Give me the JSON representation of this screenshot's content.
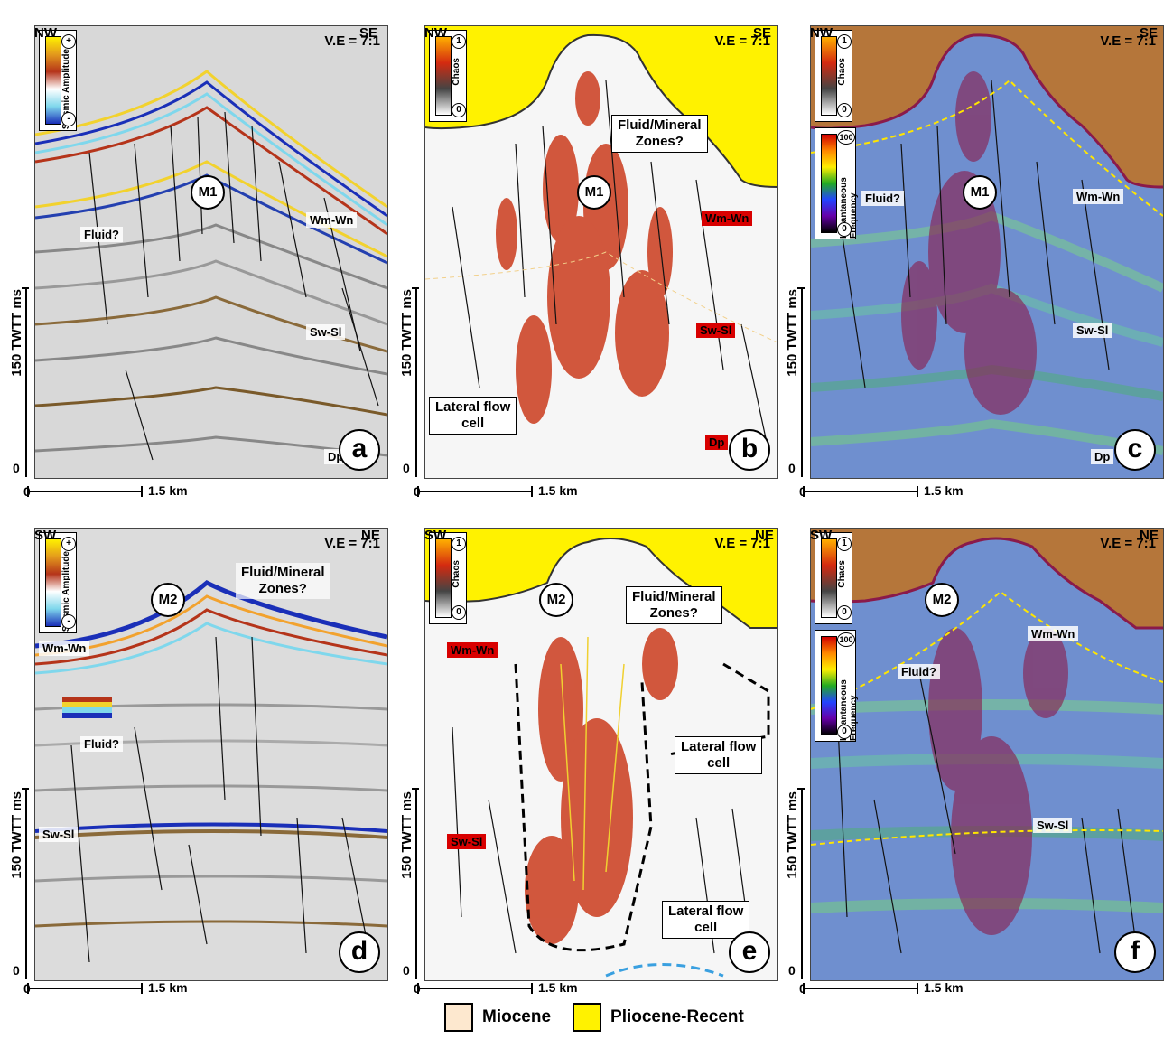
{
  "panels": [
    {
      "id": "a",
      "dir_left": "NW",
      "dir_right": "SE",
      "ve": "V.E = 7:1",
      "letter": "a",
      "marker": "M1",
      "legend_title": "Seismic Amplitude",
      "legend_top": "+",
      "legend_bottom": "-",
      "labels": {
        "fluid": "Fluid?",
        "wm": "Wm-Wn",
        "sw": "Sw-Sl",
        "dp": "Dp"
      }
    },
    {
      "id": "b",
      "dir_left": "NW",
      "dir_right": "SE",
      "ve": "V.E = 7:1",
      "letter": "b",
      "marker": "M1",
      "legend_title": "Chaos",
      "legend_top": "1",
      "legend_bottom": "0",
      "labels": {
        "zones_line1": "Fluid/Mineral",
        "zones_line2": "Zones?",
        "wm": "Wm-Wn",
        "sw": "Sw-Sl",
        "dp": "Dp",
        "lateral_line1": "Lateral flow",
        "lateral_line2": "cell"
      }
    },
    {
      "id": "c",
      "dir_left": "NW",
      "dir_right": "SE",
      "ve": "V.E = 7:1",
      "letter": "c",
      "marker": "M1",
      "legend_title": "Chaos",
      "legend_top": "1",
      "legend_bottom": "0",
      "legend2_title": "Instantaneous Frequency",
      "legend2_top": "100",
      "legend2_bottom": "0",
      "labels": {
        "fluid": "Fluid?",
        "wm": "Wm-Wn",
        "sw": "Sw-Sl",
        "dp": "Dp"
      }
    },
    {
      "id": "d",
      "dir_left": "SW",
      "dir_right": "NE",
      "ve": "V.E = 7:1",
      "letter": "d",
      "marker": "M2",
      "legend_title": "Seismic Amplitude",
      "legend_top": "+",
      "legend_bottom": "-",
      "labels": {
        "zones_line1": "Fluid/Mineral",
        "zones_line2": "Zones?",
        "fluid": "Fluid?",
        "wm": "Wm-Wn",
        "sw": "Sw-Sl"
      }
    },
    {
      "id": "e",
      "dir_left": "SW",
      "dir_right": "NE",
      "ve": "V.E = 7:1",
      "letter": "e",
      "marker": "M2",
      "legend_title": "Chaos",
      "legend_top": "1",
      "legend_bottom": "0",
      "labels": {
        "zones_line1": "Fluid/Mineral",
        "zones_line2": "Zones?",
        "wm": "Wm-Wn",
        "sw": "Sw-Sl",
        "lateral_line1": "Lateral flow",
        "lateral_line2": "cell",
        "lateral2_line1": "Lateral flow",
        "lateral2_line2": "cell"
      }
    },
    {
      "id": "f",
      "dir_left": "SW",
      "dir_right": "NE",
      "ve": "V.E = 7:1",
      "letter": "f",
      "marker": "M2",
      "legend_title": "Chaos",
      "legend_top": "1",
      "legend_bottom": "0",
      "legend2_title": "Instantaneous Frequency",
      "legend2_top": "100",
      "legend2_bottom": "0",
      "labels": {
        "fluid": "Fluid?",
        "wm": "Wm-Wn",
        "sw": "Sw-Sl"
      }
    }
  ],
  "axes": {
    "y_label": "150 TWTT ms",
    "zero": "0",
    "scale": "1.5 km"
  },
  "legend": {
    "miocene": "Miocene",
    "pliocene": "Pliocene-Recent"
  },
  "colors": {
    "miocene": "#fde8cf",
    "pliocene": "#fff200",
    "overburden_brown": "#b5763a",
    "chaos_red": "#d42a10"
  }
}
